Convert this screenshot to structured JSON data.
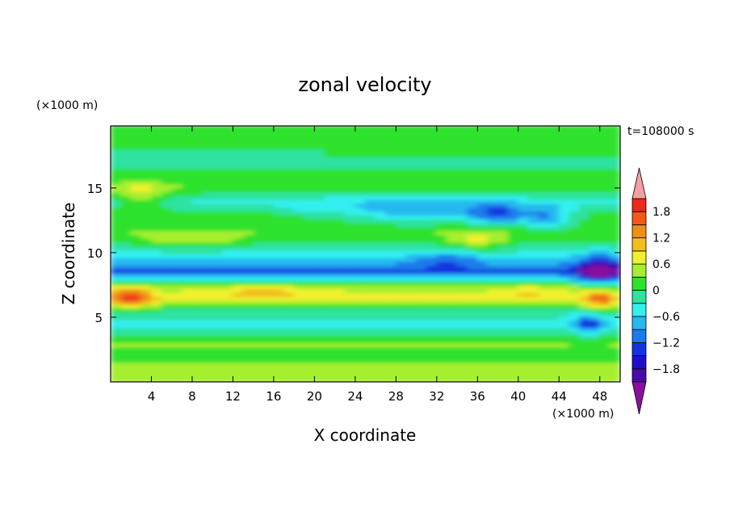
{
  "chart_data": {
    "type": "heatmap",
    "title": "zonal velocity",
    "xlabel": "X coordinate",
    "ylabel": "Z coordinate",
    "x_unit": "(×1000 m)",
    "y_unit": "(×1000 m)",
    "time_label": "t=108000 s",
    "xlim": [
      0,
      50
    ],
    "ylim": [
      0,
      19.8
    ],
    "x_ticks": [
      4,
      8,
      12,
      16,
      20,
      24,
      28,
      32,
      36,
      40,
      44,
      48
    ],
    "y_ticks": [
      5,
      10,
      15
    ],
    "colorbar": {
      "levels": [
        -2.1,
        -1.8,
        -1.5,
        -1.2,
        -0.9,
        -0.6,
        -0.3,
        0,
        0.3,
        0.6,
        0.9,
        1.2,
        1.5,
        1.8,
        2.1
      ],
      "tick_labels": [
        1.8,
        1.2,
        0.6,
        0,
        -0.6,
        -1.2,
        -1.8
      ],
      "colors": [
        "#8a0f9f",
        "#4b0aa8",
        "#1f10c8",
        "#1335e0",
        "#1a7bea",
        "#25b9f0",
        "#33f0ef",
        "#2ee2a0",
        "#2ee22e",
        "#a6ef2e",
        "#f0f02e",
        "#f0bf1c",
        "#f08f17",
        "#f05a17",
        "#ea2a1a",
        "#f4a0a3"
      ]
    },
    "field_bands": [
      {
        "z": 18.5,
        "u": 0.05
      },
      {
        "z": 17.0,
        "u": -0.1
      },
      {
        "z": 15.0,
        "u": 0.25
      },
      {
        "z": 14.0,
        "u": -0.35
      },
      {
        "z": 13.0,
        "u": 0.1
      },
      {
        "z": 11.5,
        "u": 0.25
      },
      {
        "z": 10.0,
        "u": -0.35
      },
      {
        "z": 8.5,
        "u": -1.25
      },
      {
        "z": 7.5,
        "u": 0.35
      },
      {
        "z": 6.5,
        "u": 0.75
      },
      {
        "z": 5.5,
        "u": -0.1
      },
      {
        "z": 4.5,
        "u": -0.45
      },
      {
        "z": 3.0,
        "u": 0.35
      },
      {
        "z": 2.0,
        "u": 0.05
      },
      {
        "z": 1.0,
        "u": 0.45
      }
    ]
  }
}
